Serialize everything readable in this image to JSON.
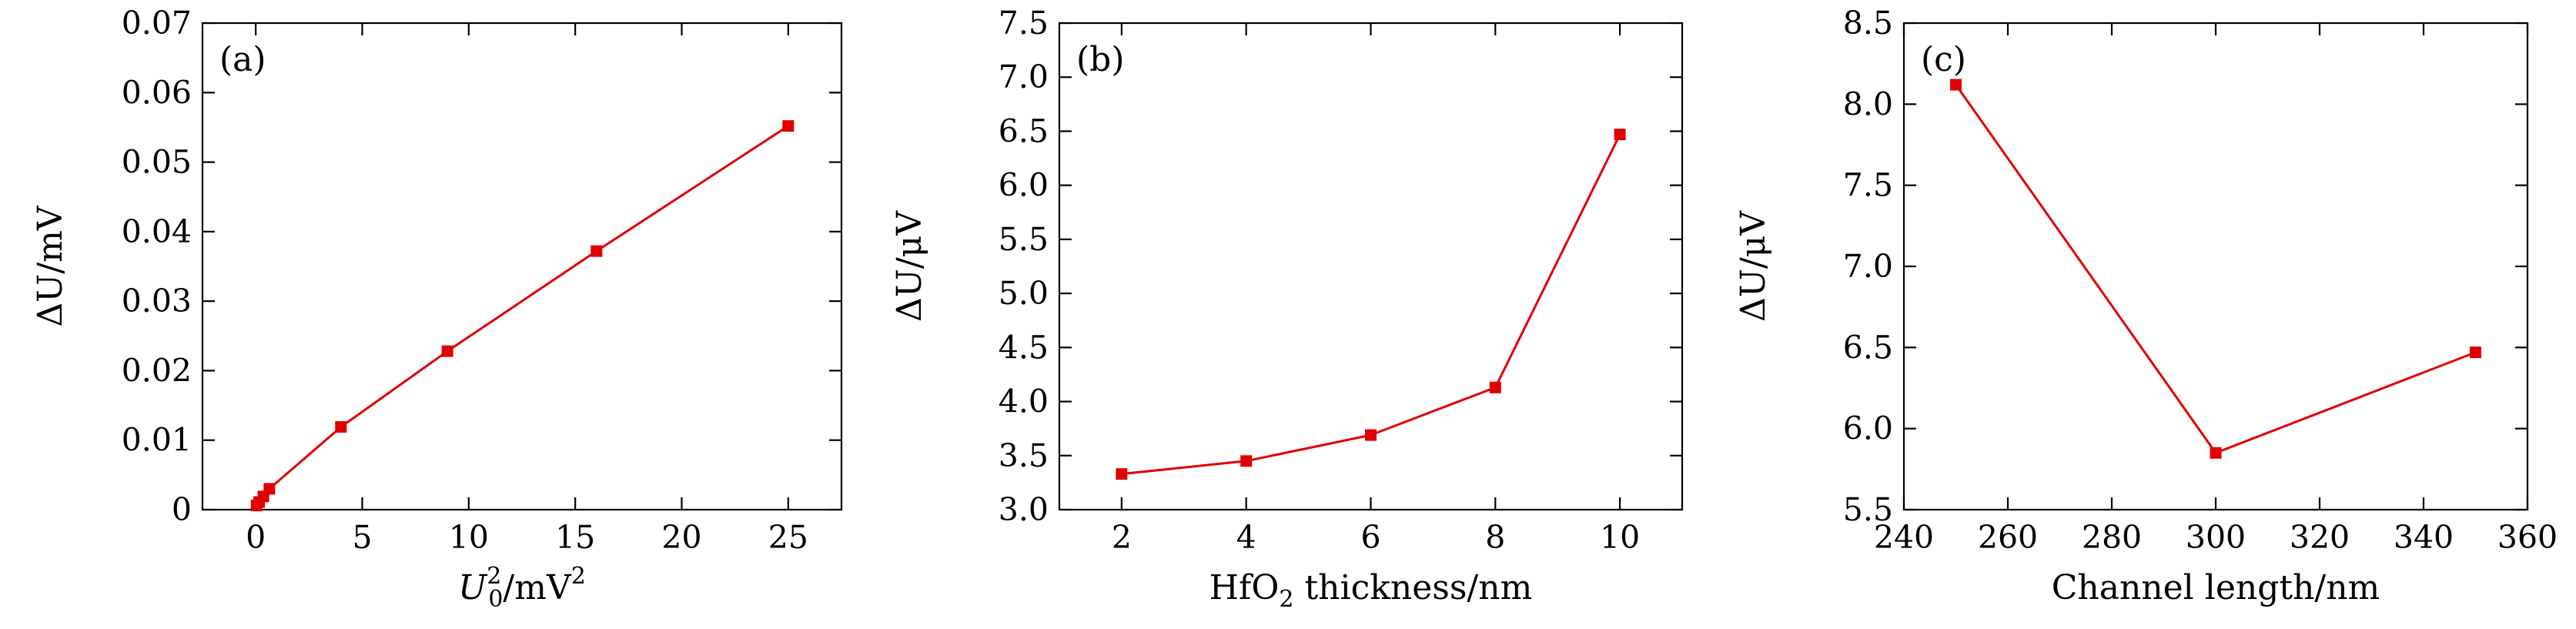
{
  "colors": {
    "series": "#e00000"
  },
  "chart_data": [
    {
      "type": "line",
      "panel_label": "(a)",
      "xlabel_parts": {
        "main": "U",
        "sub": "0",
        "sup": "2",
        "unit": "/mV",
        "unit_sup": "2"
      },
      "ylabel": "ΔU/mV",
      "xlim": [
        -2.5,
        27.5
      ],
      "ylim": [
        0,
        0.07
      ],
      "xticks": [
        0,
        5,
        10,
        15,
        20,
        25
      ],
      "xtick_labels": [
        "0",
        "5",
        "10",
        "15",
        "20",
        "25"
      ],
      "yticks": [
        0,
        0.01,
        0.02,
        0.03,
        0.04,
        0.05,
        0.06,
        0.07
      ],
      "ytick_labels": [
        "0",
        "0.01",
        "0.02",
        "0.03",
        "0.04",
        "0.05",
        "0.06",
        "0.07"
      ],
      "x": [
        0.04,
        0.16,
        0.36,
        0.64,
        4,
        9,
        16,
        25
      ],
      "y": [
        0.0006,
        0.0011,
        0.0019,
        0.003,
        0.0119,
        0.0228,
        0.0372,
        0.0552
      ]
    },
    {
      "type": "line",
      "panel_label": "(b)",
      "xlabel_parts": {
        "main": "HfO",
        "sub": "2",
        "rest": " thickness/nm"
      },
      "ylabel": "ΔU/μV",
      "xlim": [
        1,
        11
      ],
      "ylim": [
        3.0,
        7.5
      ],
      "xticks": [
        2,
        4,
        6,
        8,
        10
      ],
      "xtick_labels": [
        "2",
        "4",
        "6",
        "8",
        "10"
      ],
      "yticks": [
        3.0,
        3.5,
        4.0,
        4.5,
        5.0,
        5.5,
        6.0,
        6.5,
        7.0,
        7.5
      ],
      "ytick_labels": [
        "3.0",
        "3.5",
        "4.0",
        "4.5",
        "5.0",
        "5.5",
        "6.0",
        "6.5",
        "7.0",
        "7.5"
      ],
      "x": [
        2,
        4,
        6,
        8,
        10
      ],
      "y": [
        3.33,
        3.45,
        3.69,
        4.13,
        6.47
      ]
    },
    {
      "type": "line",
      "panel_label": "(c)",
      "xlabel": "Channel length/nm",
      "ylabel": "ΔU/μV",
      "xlim": [
        240,
        360
      ],
      "ylim": [
        5.5,
        8.5
      ],
      "xticks": [
        240,
        260,
        280,
        300,
        320,
        340,
        360
      ],
      "xtick_labels": [
        "240",
        "260",
        "280",
        "300",
        "320",
        "340",
        "360"
      ],
      "yticks": [
        5.5,
        6.0,
        6.5,
        7.0,
        7.5,
        8.0,
        8.5
      ],
      "ytick_labels": [
        "5.5",
        "6.0",
        "6.5",
        "7.0",
        "7.5",
        "8.0",
        "8.5"
      ],
      "x": [
        250,
        300,
        350
      ],
      "y": [
        8.12,
        5.85,
        6.47
      ]
    }
  ]
}
